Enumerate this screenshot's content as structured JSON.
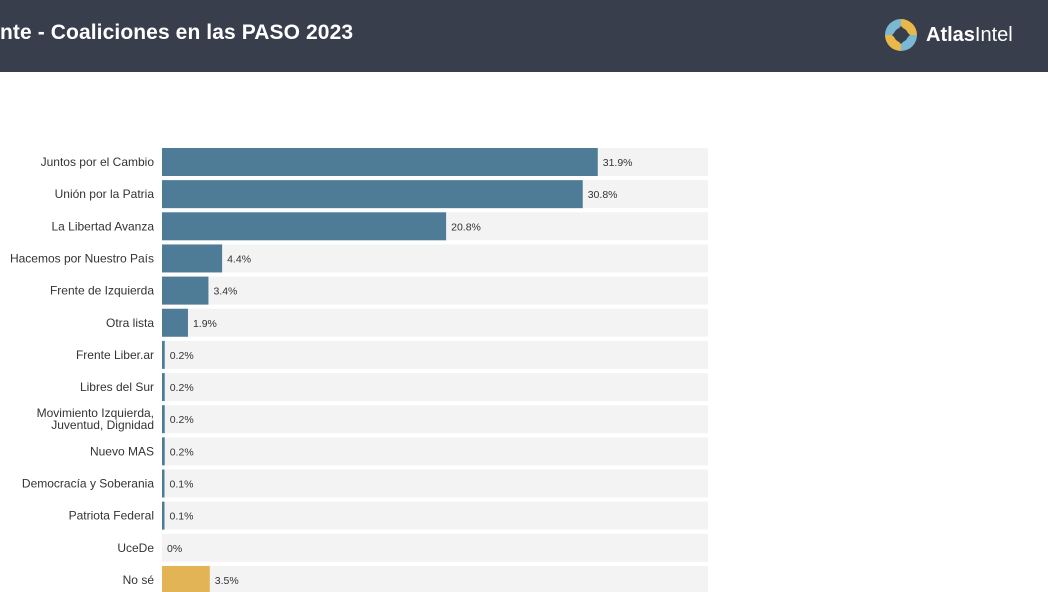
{
  "header": {
    "title": "nte - Coaliciones en las PASO 2023",
    "brand_part1": "Atlas",
    "brand_part2": "Intel",
    "background": "#383e4c"
  },
  "chart_data": {
    "type": "bar",
    "orientation": "horizontal",
    "categories": [
      "Juntos por el Cambio",
      "Unión por la Patria",
      "La Libertad Avanza",
      "Hacemos por Nuestro País",
      "Frente de Izquierda",
      "Otra lista",
      "Frente Liber.ar",
      "Libres del Sur",
      "Movimiento Izquierda, Juventud, Dignidad",
      "Nuevo MAS",
      "Democracía y Soberania",
      "Patriota Federal",
      "UceDe",
      "No sé"
    ],
    "values": [
      31.9,
      30.8,
      20.8,
      4.4,
      3.4,
      1.9,
      0.2,
      0.2,
      0.2,
      0.2,
      0.1,
      0.1,
      0,
      3.5
    ],
    "value_labels": [
      "31.9%",
      "30.8%",
      "20.8%",
      "4.4%",
      "3.4%",
      "1.9%",
      "0.2%",
      "0.2%",
      "0.2%",
      "0.2%",
      "0.1%",
      "0.1%",
      "0%",
      "3.5%"
    ],
    "xlim": [
      0,
      40
    ],
    "colors": {
      "bar": "#4e7b96",
      "highlight": "#e2b455",
      "track": "#f3f3f3"
    },
    "highlight_category": "No sé",
    "grid": false,
    "legend": "none"
  }
}
